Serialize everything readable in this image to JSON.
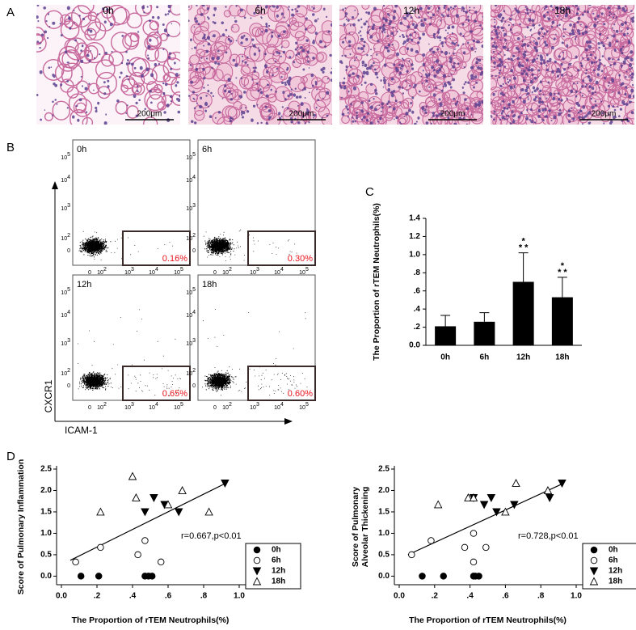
{
  "panel_a": {
    "label": "A",
    "images": [
      {
        "time": "0h",
        "scale": "200μm"
      },
      {
        "time": "6h",
        "scale": "200μm"
      },
      {
        "time": "12h",
        "scale": "200μm"
      },
      {
        "time": "18h",
        "scale": "200μm"
      }
    ]
  },
  "panel_b": {
    "label": "B",
    "ylabel": "CXCR1",
    "xlabel": "ICAM-1",
    "ticks": [
      "0",
      {
        "base": "10",
        "exp": "2"
      },
      {
        "base": "10",
        "exp": "3"
      },
      {
        "base": "10",
        "exp": "4"
      },
      {
        "base": "10",
        "exp": "5"
      }
    ],
    "plots": [
      {
        "time": "0h",
        "gate_percent": "0.16%"
      },
      {
        "time": "6h",
        "gate_percent": "0.30%"
      },
      {
        "time": "12h",
        "gate_percent": "0.65%"
      },
      {
        "time": "18h",
        "gate_percent": "0.60%"
      }
    ]
  },
  "chart_data": [
    {
      "type": "bar",
      "panel_label": "C",
      "ylabel": [
        "The Proportion of rTEM Neutrophils(%)"
      ],
      "categories": [
        "0h",
        "6h",
        "12h",
        "18h"
      ],
      "values": [
        0.21,
        0.26,
        0.7,
        0.53
      ],
      "errors": [
        0.12,
        0.1,
        0.32,
        0.22
      ],
      "color": "#000000",
      "ylim": [
        0,
        1.4
      ],
      "yticks": [
        {
          "value": 0,
          "label": "0.0"
        },
        {
          "value": 0.2,
          "label": ".2"
        },
        {
          "value": 0.4,
          "label": ".4"
        },
        {
          "value": 0.6,
          "label": ".6"
        },
        {
          "value": 0.8,
          "label": ".8"
        },
        {
          "value": 1,
          "label": "1.0"
        },
        1.2,
        1.4
      ],
      "annotations": [
        {
          "category": "12h",
          "lines": [
            "*",
            "* *"
          ]
        },
        {
          "category": "18h",
          "lines": [
            "*",
            "* *"
          ]
        }
      ]
    },
    {
      "type": "scatter",
      "panel_label": "D",
      "xlabel": "The Proportion of rTEM Neutrophils(%)",
      "ylabel": [
        "Score of Pulmonary Inflammation"
      ],
      "xlim": [
        0,
        1
      ],
      "ylim": [
        -0.2,
        2.5
      ],
      "xticks": [
        {
          "value": 0,
          "label": "0.0"
        },
        {
          "value": 0.2,
          "label": ".2"
        },
        {
          "value": 0.4,
          "label": ".4"
        },
        {
          "value": 0.6,
          "label": ".6"
        },
        {
          "value": 0.8,
          "label": ".8"
        },
        {
          "value": 1,
          "label": "1.0"
        }
      ],
      "yticks": [
        {
          "value": 0,
          "label": "0.0"
        },
        0.5,
        {
          "value": 1,
          "label": "1.0"
        },
        1.5,
        {
          "value": 2,
          "label": "2.0"
        },
        2.5
      ],
      "series": [
        {
          "name": "0h",
          "marker": "circle",
          "filled": true,
          "color": "#000000",
          "x": [
            0.11,
            0.21,
            0.47,
            0.49,
            0.51
          ],
          "y": [
            0,
            0,
            0,
            0,
            0
          ]
        },
        {
          "name": "6h",
          "marker": "circle",
          "filled": false,
          "color": "#000000",
          "x": [
            0.08,
            0.22,
            0.43,
            0.47,
            0.56
          ],
          "y": [
            0.33,
            0.67,
            0.5,
            0.83,
            0.33
          ]
        },
        {
          "name": "12h",
          "marker": "triangle-down",
          "filled": true,
          "color": "#000000",
          "x": [
            0.47,
            0.52,
            0.58,
            0.66,
            0.92
          ],
          "y": [
            1.5,
            1.83,
            1.67,
            1.5,
            2.17
          ]
        },
        {
          "name": "18h",
          "marker": "triangle-up",
          "filled": false,
          "color": "#000000",
          "x": [
            0.22,
            0.4,
            0.42,
            0.6,
            0.68,
            0.83
          ],
          "y": [
            1.5,
            2.33,
            1.83,
            1.67,
            2.0,
            1.5
          ]
        }
      ],
      "fit_line": {
        "x": [
          0.05,
          0.92
        ],
        "y": [
          0.37,
          2.16
        ]
      },
      "annotation": "r=0.667,p<0.01",
      "legend": "lower right"
    },
    {
      "type": "scatter",
      "xlabel": "The Proportion of rTEM Neutrophils(%)",
      "ylabel": [
        "Score of Pulmonary",
        "Alveolar Thickening"
      ],
      "xlim": [
        0,
        1
      ],
      "ylim": [
        -0.2,
        2.5
      ],
      "xticks": [
        {
          "value": 0,
          "label": "0.0"
        },
        {
          "value": 0.2,
          "label": ".2"
        },
        {
          "value": 0.4,
          "label": ".4"
        },
        {
          "value": 0.6,
          "label": ".6"
        },
        {
          "value": 0.8,
          "label": ".8"
        },
        {
          "value": 1,
          "label": "1.0"
        }
      ],
      "yticks": [
        {
          "value": 0,
          "label": "0.0"
        },
        0.5,
        {
          "value": 1,
          "label": "1.0"
        },
        1.5,
        {
          "value": 2,
          "label": "2.0"
        },
        2.5
      ],
      "series": [
        {
          "name": "0h",
          "marker": "circle",
          "filled": true,
          "color": "#000000",
          "x": [
            0.13,
            0.25,
            0.42,
            0.43,
            0.45
          ],
          "y": [
            0,
            0,
            0,
            0,
            0
          ]
        },
        {
          "name": "6h",
          "marker": "circle",
          "filled": false,
          "color": "#000000",
          "x": [
            0.07,
            0.18,
            0.37,
            0.42,
            0.42,
            0.49
          ],
          "y": [
            0.5,
            0.83,
            0.67,
            1.0,
            0.33,
            0.67
          ]
        },
        {
          "name": "12h",
          "marker": "triangle-down",
          "filled": true,
          "color": "#000000",
          "x": [
            0.42,
            0.48,
            0.52,
            0.55,
            0.65,
            0.85,
            0.92
          ],
          "y": [
            1.83,
            1.67,
            1.83,
            1.5,
            1.67,
            1.83,
            2.17
          ]
        },
        {
          "name": "18h",
          "marker": "triangle-up",
          "filled": false,
          "color": "#000000",
          "x": [
            0.22,
            0.39,
            0.42,
            0.6,
            0.66,
            0.84
          ],
          "y": [
            1.67,
            1.83,
            1.83,
            1.5,
            2.17,
            2.0
          ]
        }
      ],
      "fit_line": {
        "x": [
          0.05,
          0.93
        ],
        "y": [
          0.5,
          2.17
        ]
      },
      "annotation": "r=0.728,p<0.01",
      "legend": "lower right"
    }
  ]
}
